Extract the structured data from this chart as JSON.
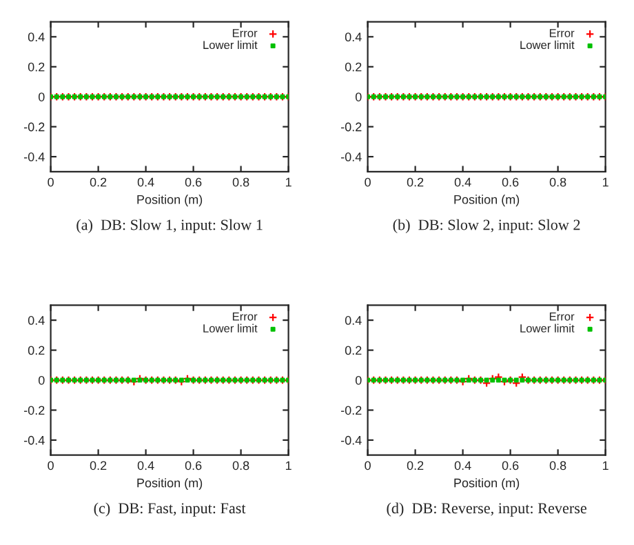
{
  "chart_data": [
    {
      "type": "scatter",
      "xlabel": "Position (m)",
      "annotations": [
        "(a)  DB: Slow 1, input: Slow 1"
      ],
      "xlim": [
        0,
        1
      ],
      "xticks": [
        0,
        0.2,
        0.4,
        0.6,
        0.8,
        1
      ],
      "ylim": [
        -0.5,
        0.5
      ],
      "yticks": [
        -0.4,
        -0.2,
        0,
        0.2,
        0.4
      ],
      "legend": "top right",
      "grid": false,
      "x": [
        0,
        0.025,
        0.05,
        0.075,
        0.1,
        0.125,
        0.15,
        0.175,
        0.2,
        0.225,
        0.25,
        0.275,
        0.3,
        0.325,
        0.35,
        0.375,
        0.4,
        0.425,
        0.45,
        0.475,
        0.5,
        0.525,
        0.55,
        0.575,
        0.6,
        0.625,
        0.65,
        0.675,
        0.7,
        0.725,
        0.75,
        0.775,
        0.8,
        0.825,
        0.85,
        0.875,
        0.9,
        0.925,
        0.95,
        0.975,
        1
      ],
      "series": [
        {
          "name": "Error",
          "color": "#ff0000",
          "marker": "cross",
          "values": [
            0,
            0,
            0,
            0,
            0,
            0,
            0,
            0,
            0,
            0,
            0,
            0,
            0,
            0,
            0,
            0,
            0,
            0,
            0,
            0,
            0,
            0,
            0,
            0,
            0,
            0,
            0,
            0,
            0,
            0,
            0,
            0,
            0,
            0,
            0,
            0,
            0,
            0,
            0,
            0,
            0
          ]
        },
        {
          "name": "Lower limit",
          "color": "#00c000",
          "marker": "square",
          "values": [
            0,
            0,
            0,
            0,
            0,
            0,
            0,
            0,
            0,
            0,
            0,
            0,
            0,
            0,
            0,
            0,
            0,
            0,
            0,
            0,
            0,
            0,
            0,
            0,
            0,
            0,
            0,
            0,
            0,
            0,
            0,
            0,
            0,
            0,
            0,
            0,
            0,
            0,
            0,
            0,
            0
          ]
        }
      ]
    },
    {
      "type": "scatter",
      "xlabel": "Position (m)",
      "annotations": [
        "(b)  DB: Slow 2, input: Slow 2"
      ],
      "xlim": [
        0,
        1
      ],
      "xticks": [
        0,
        0.2,
        0.4,
        0.6,
        0.8,
        1
      ],
      "ylim": [
        -0.5,
        0.5
      ],
      "yticks": [
        -0.4,
        -0.2,
        0,
        0.2,
        0.4
      ],
      "legend": "top right",
      "grid": false,
      "x": [
        0,
        0.025,
        0.05,
        0.075,
        0.1,
        0.125,
        0.15,
        0.175,
        0.2,
        0.225,
        0.25,
        0.275,
        0.3,
        0.325,
        0.35,
        0.375,
        0.4,
        0.425,
        0.45,
        0.475,
        0.5,
        0.525,
        0.55,
        0.575,
        0.6,
        0.625,
        0.65,
        0.675,
        0.7,
        0.725,
        0.75,
        0.775,
        0.8,
        0.825,
        0.85,
        0.875,
        0.9,
        0.925,
        0.95,
        0.975,
        1
      ],
      "series": [
        {
          "name": "Error",
          "color": "#ff0000",
          "marker": "cross",
          "values": [
            0,
            0,
            0,
            0,
            0,
            0,
            0,
            0,
            0,
            0,
            0,
            0,
            0,
            0,
            0,
            0,
            0,
            0,
            0,
            0,
            0,
            0,
            0,
            0,
            0,
            0,
            0,
            0,
            0,
            0,
            0,
            0,
            0,
            0,
            0,
            0,
            0,
            0,
            0,
            0,
            0
          ]
        },
        {
          "name": "Lower limit",
          "color": "#00c000",
          "marker": "square",
          "values": [
            0,
            0,
            0,
            0,
            0,
            0,
            0,
            0,
            0,
            0,
            0,
            0,
            0,
            0,
            0,
            0,
            0,
            0,
            0,
            0,
            0,
            0,
            0,
            0,
            0,
            0,
            0,
            0,
            0,
            0,
            0,
            0,
            0,
            0,
            0,
            0,
            0,
            0,
            0,
            0,
            0
          ]
        }
      ]
    },
    {
      "type": "scatter",
      "xlabel": "Position (m)",
      "annotations": [
        "(c)  DB: Fast, input: Fast"
      ],
      "xlim": [
        0,
        1
      ],
      "xticks": [
        0,
        0.2,
        0.4,
        0.6,
        0.8,
        1
      ],
      "ylim": [
        -0.5,
        0.5
      ],
      "yticks": [
        -0.4,
        -0.2,
        0,
        0.2,
        0.4
      ],
      "legend": "top right",
      "grid": false,
      "x": [
        0,
        0.025,
        0.05,
        0.075,
        0.1,
        0.125,
        0.15,
        0.175,
        0.2,
        0.225,
        0.25,
        0.275,
        0.3,
        0.325,
        0.35,
        0.375,
        0.4,
        0.425,
        0.45,
        0.475,
        0.5,
        0.525,
        0.55,
        0.575,
        0.6,
        0.625,
        0.65,
        0.675,
        0.7,
        0.725,
        0.75,
        0.775,
        0.8,
        0.825,
        0.85,
        0.875,
        0.9,
        0.925,
        0.95,
        0.975,
        1
      ],
      "series": [
        {
          "name": "Error",
          "color": "#ff0000",
          "marker": "cross",
          "values": [
            0,
            0,
            0,
            0,
            0,
            0,
            0,
            0,
            0,
            0,
            0,
            0,
            0,
            0,
            -0.01,
            0.01,
            0,
            0,
            0,
            0,
            0,
            0,
            -0.01,
            0.01,
            0,
            0,
            0,
            0,
            0,
            0,
            0,
            0,
            0,
            0,
            0,
            0,
            0,
            0,
            0,
            0,
            0
          ]
        },
        {
          "name": "Lower limit",
          "color": "#00c000",
          "marker": "square",
          "values": [
            0,
            0,
            0,
            0,
            0,
            0,
            0,
            0,
            0,
            0,
            0,
            0,
            0,
            0,
            0,
            0,
            0,
            0,
            0,
            0,
            0,
            0,
            0,
            0,
            0,
            0,
            0,
            0,
            0,
            0,
            0,
            0,
            0,
            0,
            0,
            0,
            0,
            0,
            0,
            0,
            0
          ]
        }
      ]
    },
    {
      "type": "scatter",
      "xlabel": "Position (m)",
      "annotations": [
        "(d)  DB: Reverse, input: Reverse"
      ],
      "xlim": [
        0,
        1
      ],
      "xticks": [
        0,
        0.2,
        0.4,
        0.6,
        0.8,
        1
      ],
      "ylim": [
        -0.5,
        0.5
      ],
      "yticks": [
        -0.4,
        -0.2,
        0,
        0.2,
        0.4
      ],
      "legend": "top right",
      "grid": false,
      "x": [
        0,
        0.025,
        0.05,
        0.075,
        0.1,
        0.125,
        0.15,
        0.175,
        0.2,
        0.225,
        0.25,
        0.275,
        0.3,
        0.325,
        0.35,
        0.375,
        0.4,
        0.425,
        0.45,
        0.475,
        0.5,
        0.525,
        0.55,
        0.575,
        0.6,
        0.625,
        0.65,
        0.675,
        0.7,
        0.725,
        0.75,
        0.775,
        0.8,
        0.825,
        0.85,
        0.875,
        0.9,
        0.925,
        0.95,
        0.975,
        1
      ],
      "series": [
        {
          "name": "Error",
          "color": "#ff0000",
          "marker": "cross",
          "values": [
            0,
            0,
            0,
            0,
            0,
            0,
            0,
            0,
            0,
            0,
            0,
            0,
            0,
            0,
            0,
            0,
            -0.01,
            0.01,
            0,
            0,
            -0.02,
            0.01,
            0.02,
            -0.01,
            0,
            -0.02,
            0.02,
            0,
            0,
            0,
            0,
            0,
            0,
            0,
            0,
            0,
            0,
            0,
            0,
            0,
            0
          ]
        },
        {
          "name": "Lower limit",
          "color": "#00c000",
          "marker": "square",
          "values": [
            0,
            0,
            0,
            0,
            0,
            0,
            0,
            0,
            0,
            0,
            0,
            0,
            0,
            0,
            0,
            0,
            0,
            0,
            0,
            0,
            0,
            0,
            0,
            0,
            0,
            0,
            0,
            0,
            0,
            0,
            0,
            0,
            0,
            0,
            0,
            0,
            0,
            0,
            0,
            0,
            0
          ]
        }
      ]
    }
  ]
}
